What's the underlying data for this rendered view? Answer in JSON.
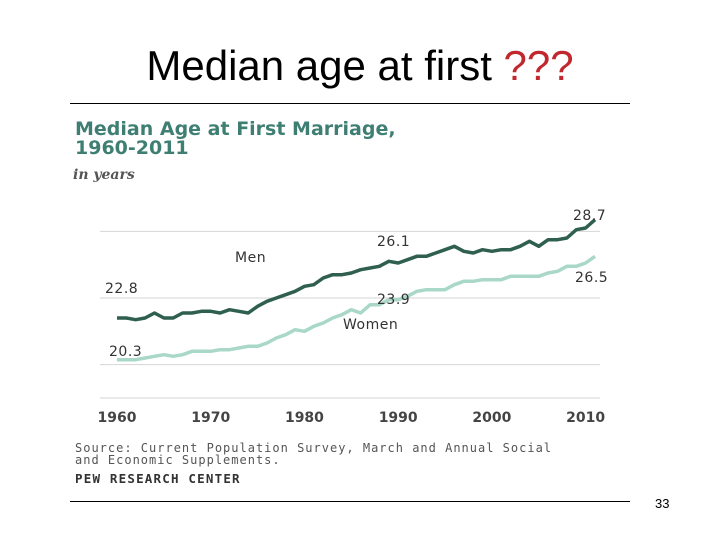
{
  "slide": {
    "title_main": "Median age at first",
    "title_accent": "???",
    "page_number": "33"
  },
  "chart_data": {
    "type": "line",
    "title_line1": "Median Age at First Marriage,",
    "title_line2": "1960-2011",
    "subtitle": "in years",
    "source_line1": "Source: Current Population Survey, March and Annual Social",
    "source_line2": "and Economic Supplements.",
    "credit": "PEW RESEARCH CENTER",
    "xlim": [
      1960,
      2011
    ],
    "ylim": [
      18,
      30
    ],
    "x_ticks": [
      "1960",
      "1970",
      "1980",
      "1990",
      "2000",
      "2010"
    ],
    "grid": true,
    "x": [
      1960,
      1961,
      1962,
      1963,
      1964,
      1965,
      1966,
      1967,
      1968,
      1969,
      1970,
      1971,
      1972,
      1973,
      1974,
      1975,
      1976,
      1977,
      1978,
      1979,
      1980,
      1981,
      1982,
      1983,
      1984,
      1985,
      1986,
      1987,
      1988,
      1989,
      1990,
      1991,
      1992,
      1993,
      1994,
      1995,
      1996,
      1997,
      1998,
      1999,
      2000,
      2001,
      2002,
      2003,
      2004,
      2005,
      2006,
      2007,
      2008,
      2009,
      2010,
      2011
    ],
    "series": [
      {
        "name": "Men",
        "color": "#2f5f4f",
        "values": [
          22.8,
          22.8,
          22.7,
          22.8,
          23.1,
          22.8,
          22.8,
          23.1,
          23.1,
          23.2,
          23.2,
          23.1,
          23.3,
          23.2,
          23.1,
          23.5,
          23.8,
          24.0,
          24.2,
          24.4,
          24.7,
          24.8,
          25.2,
          25.4,
          25.4,
          25.5,
          25.7,
          25.8,
          25.9,
          26.2,
          26.1,
          26.3,
          26.5,
          26.5,
          26.7,
          26.9,
          27.1,
          26.8,
          26.7,
          26.9,
          26.8,
          26.9,
          26.9,
          27.1,
          27.4,
          27.1,
          27.5,
          27.5,
          27.6,
          28.1,
          28.2,
          28.7
        ]
      },
      {
        "name": "Women",
        "color": "#a9d8c8",
        "values": [
          20.3,
          20.3,
          20.3,
          20.4,
          20.5,
          20.6,
          20.5,
          20.6,
          20.8,
          20.8,
          20.8,
          20.9,
          20.9,
          21.0,
          21.1,
          21.1,
          21.3,
          21.6,
          21.8,
          22.1,
          22.0,
          22.3,
          22.5,
          22.8,
          23.0,
          23.3,
          23.1,
          23.6,
          23.6,
          23.9,
          23.9,
          24.1,
          24.4,
          24.5,
          24.5,
          24.5,
          24.8,
          25.0,
          25.0,
          25.1,
          25.1,
          25.1,
          25.3,
          25.3,
          25.3,
          25.3,
          25.5,
          25.6,
          25.9,
          25.9,
          26.1,
          26.5
        ]
      }
    ],
    "annotations": {
      "men_start": "22.8",
      "men_mid": "26.1",
      "men_end": "28.7",
      "women_start": "20.3",
      "women_mid": "23.9",
      "women_end": "26.5"
    }
  }
}
